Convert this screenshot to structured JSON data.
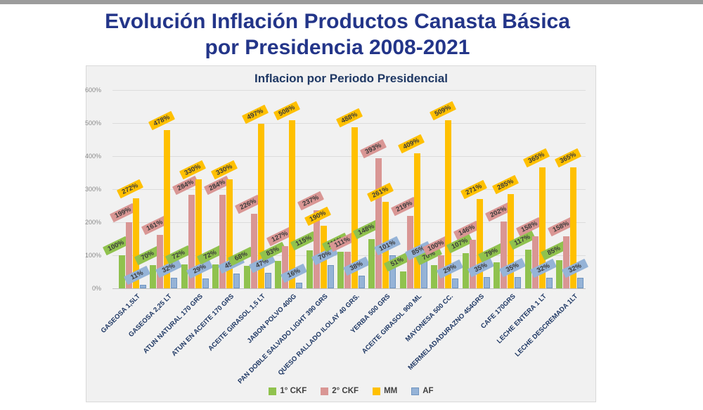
{
  "page": {
    "title_line1": "Evolución Inflación Productos Canasta Básica",
    "title_line2": "por Presidencia 2008-2021"
  },
  "chart_data": {
    "type": "bar",
    "title": "Inflacion por Periodo Presidencial",
    "categories": [
      "GASEOSA 1,5LT",
      "GASEOSA 2,25 LT",
      "ATUN NATURAL 170 GRS",
      "ATUN EN ACEITE 170 GRS",
      "ACEITE GIRASOL 1,5 LT",
      "JABON POLVO 400G",
      "PAN DOBLE SALVADO LIGHT 390 GRS",
      "QUESO RALLADO ILOLAY 40 GRS.",
      "YERBA  500 GRS",
      "ACEITE GIRASOL 900 ML",
      "MAYONESA 500 CC.",
      "MERMELADADURAZNO 454GRS",
      "CAFE  170GRS",
      "LECHE ENTERA 1 LT",
      "LECHE DESCREMADA 1LT"
    ],
    "series": [
      {
        "name": "1° CKF",
        "color": "#90c24e",
        "values": [
          100,
          70,
          72,
          72,
          68,
          83,
          115,
          111,
          148,
          51,
          70,
          107,
          79,
          117,
          85
        ]
      },
      {
        "name": "2° CKF",
        "color": "#d99694",
        "values": [
          199,
          161,
          284,
          284,
          226,
          127,
          237,
          111,
          393,
          219,
          100,
          146,
          202,
          158,
          158
        ]
      },
      {
        "name": "MM",
        "color": "#ffc000",
        "values": [
          272,
          478,
          330,
          330,
          497,
          508,
          190,
          488,
          261,
          409,
          509,
          271,
          285,
          365,
          365
        ]
      },
      {
        "name": "AF",
        "color": "#95b3d7",
        "values": [
          11,
          32,
          29,
          45,
          47,
          16,
          70,
          38,
          101,
          85,
          29,
          35,
          35,
          32,
          32
        ]
      }
    ],
    "value_label_suffix": "%",
    "ylim": [
      0,
      600
    ],
    "y_tick_step": 100,
    "y_tick_labels": [
      "0%",
      "100%",
      "200%",
      "300%",
      "400%",
      "500%",
      "600%"
    ],
    "grid": true,
    "legend_position": "bottom",
    "colors": {
      "page_title": "#233589",
      "chart_title": "#1f3864",
      "category_labels": "#1f3864",
      "axis_ticks": "#8a8a8a",
      "plot_background": "#f1f1f1",
      "gridlines": "#dcdcdc",
      "blue_border": "#6f94bf"
    }
  }
}
